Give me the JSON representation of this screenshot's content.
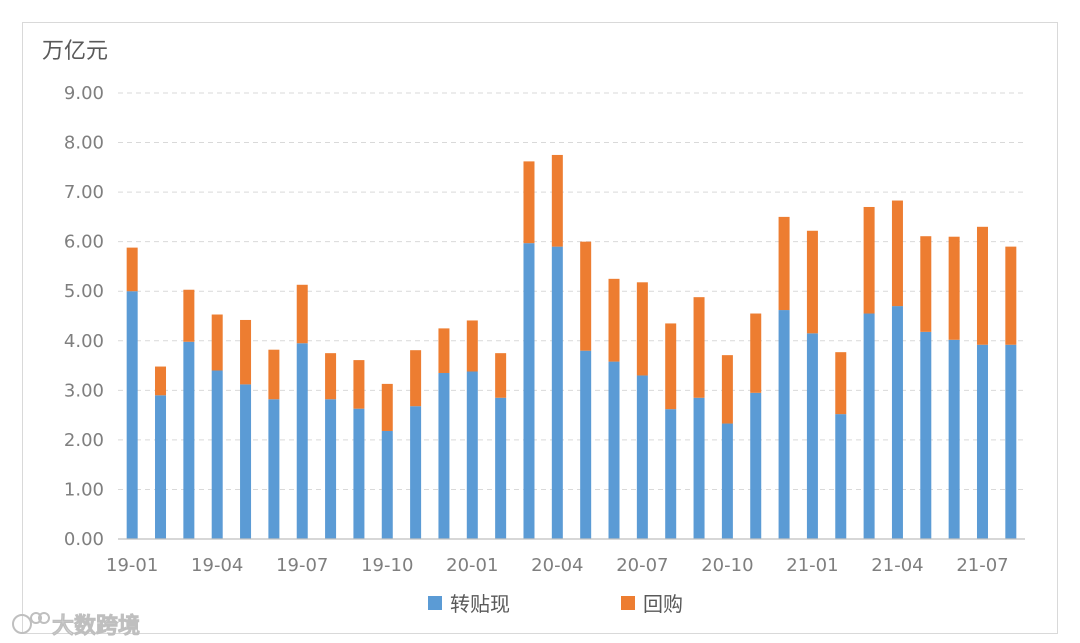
{
  "chart_data": {
    "type": "bar",
    "stacked": true,
    "unit_label": "万亿元",
    "ylim": [
      0,
      9
    ],
    "yticks": [
      "0.00",
      "1.00",
      "2.00",
      "3.00",
      "4.00",
      "5.00",
      "6.00",
      "7.00",
      "8.00",
      "9.00"
    ],
    "grid": true,
    "legend_position": "bottom",
    "categories": [
      "19-01",
      "19-02",
      "19-03",
      "19-04",
      "19-05",
      "19-06",
      "19-07",
      "19-08",
      "19-09",
      "19-10",
      "19-11",
      "19-12",
      "20-01",
      "20-02",
      "20-03",
      "20-04",
      "20-05",
      "20-06",
      "20-07",
      "20-08",
      "20-09",
      "20-10",
      "20-11",
      "20-12",
      "21-01",
      "21-02",
      "21-03",
      "21-04",
      "21-05",
      "21-06",
      "21-07",
      "21-08"
    ],
    "x_tick_labels": [
      "19-01",
      "19-04",
      "19-07",
      "19-10",
      "20-01",
      "20-04",
      "20-07",
      "20-10",
      "21-01",
      "21-04",
      "21-07"
    ],
    "series": [
      {
        "name": "转贴现",
        "color": "#5b9bd5",
        "values": [
          5.0,
          2.9,
          3.98,
          3.4,
          3.12,
          2.82,
          3.95,
          2.82,
          2.63,
          2.18,
          2.68,
          3.35,
          3.38,
          2.85,
          5.97,
          5.9,
          3.8,
          3.58,
          3.3,
          2.62,
          2.85,
          2.33,
          2.95,
          4.62,
          4.15,
          2.52,
          4.55,
          4.7,
          4.18,
          4.02,
          3.92,
          3.92
        ]
      },
      {
        "name": "回购",
        "color": "#ed7d31",
        "values": [
          0.88,
          0.58,
          1.05,
          1.13,
          1.3,
          1.0,
          1.18,
          0.93,
          0.98,
          0.95,
          1.13,
          0.9,
          1.03,
          0.9,
          1.65,
          1.85,
          2.2,
          1.67,
          1.88,
          1.73,
          2.03,
          1.38,
          1.6,
          1.88,
          2.07,
          1.25,
          2.15,
          2.13,
          1.93,
          2.08,
          2.38,
          1.98
        ]
      }
    ]
  },
  "watermark": {
    "text": "大数跨境"
  }
}
